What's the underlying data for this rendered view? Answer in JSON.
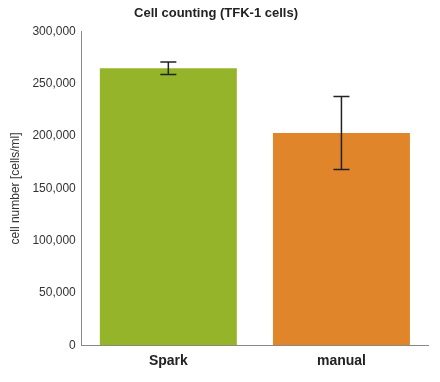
{
  "chart_data": {
    "type": "bar",
    "title": "Cell counting (TFK-1 cells)",
    "y_label": "cell number [cells/ml]",
    "categories": [
      "Spark",
      "manual"
    ],
    "values": [
      265000,
      203000
    ],
    "errors": [
      6000,
      35000
    ],
    "colors": [
      "#95b42a",
      "#e0852a"
    ],
    "ylim": [
      0,
      300000
    ],
    "yticks": [
      0,
      {
        "value": 50000,
        "label": "50,000"
      },
      {
        "value": 100000,
        "label": "100,000"
      },
      {
        "value": 150000,
        "label": "150,000"
      },
      {
        "value": 200000,
        "label": "200,000"
      },
      {
        "value": 250000,
        "label": "250,000"
      },
      {
        "value": 300000,
        "label": "300,000"
      }
    ],
    "grid": false
  }
}
